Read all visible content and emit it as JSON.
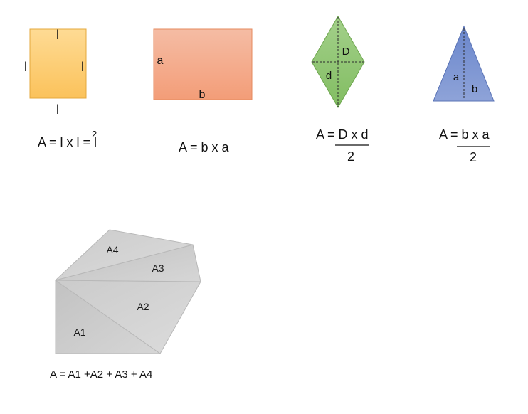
{
  "square": {
    "side_top": "l",
    "side_left": "l",
    "side_right": "l",
    "side_bottom": "l",
    "formula": "A = l x l = l",
    "formula_exponent": "2",
    "fill_top": "#fedb94",
    "fill_bottom": "#fbc25b"
  },
  "rectangle": {
    "side_a": "a",
    "side_b": "b",
    "formula": "A = b x a",
    "fill_top": "#f5bca4",
    "fill_bottom": "#f39d78"
  },
  "rhombus": {
    "diag_major": "D",
    "diag_minor": "d",
    "formula_numerator": "A = D x d",
    "formula_denominator": "2",
    "fill": "#8fc471"
  },
  "triangle": {
    "height": "a",
    "base": "b",
    "formula_numerator": "A = b x a",
    "formula_denominator": "2",
    "fill": "#7891cf"
  },
  "polygon": {
    "areas": [
      "A1",
      "A2",
      "A3",
      "A4"
    ],
    "formula": "A = A1 +A2 + A3 + A4",
    "fill": "#c9c9c9"
  }
}
